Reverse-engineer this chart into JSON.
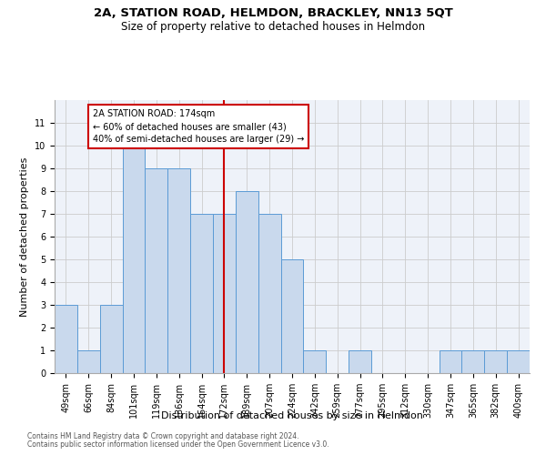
{
  "title": "2A, STATION ROAD, HELMDON, BRACKLEY, NN13 5QT",
  "subtitle": "Size of property relative to detached houses in Helmdon",
  "xlabel": "Distribution of detached houses by size in Helmdon",
  "ylabel": "Number of detached properties",
  "footnote1": "Contains HM Land Registry data © Crown copyright and database right 2024.",
  "footnote2": "Contains public sector information licensed under the Open Government Licence v3.0.",
  "bin_labels": [
    "49sqm",
    "66sqm",
    "84sqm",
    "101sqm",
    "119sqm",
    "136sqm",
    "154sqm",
    "172sqm",
    "189sqm",
    "207sqm",
    "224sqm",
    "242sqm",
    "259sqm",
    "277sqm",
    "295sqm",
    "312sqm",
    "330sqm",
    "347sqm",
    "365sqm",
    "382sqm",
    "400sqm"
  ],
  "values": [
    3,
    1,
    3,
    10,
    9,
    9,
    7,
    7,
    8,
    7,
    5,
    1,
    0,
    1,
    0,
    0,
    0,
    1,
    1,
    1,
    1
  ],
  "bar_color": "#c9d9ed",
  "bar_edge_color": "#5b9bd5",
  "annotation_text": "2A STATION ROAD: 174sqm\n← 60% of detached houses are smaller (43)\n40% of semi-detached houses are larger (29) →",
  "annotation_box_color": "#ffffff",
  "annotation_box_edge": "#cc0000",
  "vline_color": "#cc0000",
  "vline_x": 7.5,
  "ylim": [
    0,
    12
  ],
  "yticks": [
    0,
    1,
    2,
    3,
    4,
    5,
    6,
    7,
    8,
    9,
    10,
    11
  ],
  "grid_color": "#cccccc",
  "bg_color": "#eef2f9",
  "title_fontsize": 9.5,
  "subtitle_fontsize": 8.5,
  "xlabel_fontsize": 8,
  "ylabel_fontsize": 8,
  "tick_fontsize": 7,
  "annotation_fontsize": 7,
  "footnote_fontsize": 5.5
}
